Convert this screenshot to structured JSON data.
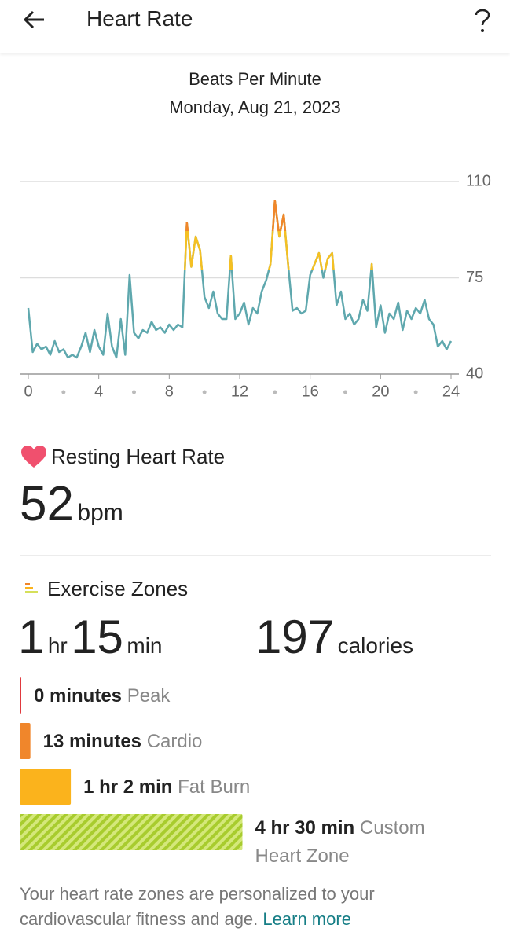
{
  "header": {
    "title": "Heart Rate"
  },
  "chart_data": {
    "type": "line",
    "title": "Beats Per Minute",
    "subtitle": "Monday, Aug 21, 2023",
    "x": [
      0,
      0.25,
      0.5,
      0.75,
      1,
      1.25,
      1.5,
      1.75,
      2,
      2.25,
      2.5,
      2.75,
      3,
      3.25,
      3.5,
      3.75,
      4,
      4.25,
      4.5,
      4.75,
      5,
      5.25,
      5.5,
      5.75,
      6,
      6.25,
      6.5,
      6.75,
      7,
      7.25,
      7.5,
      7.75,
      8,
      8.25,
      8.5,
      8.75,
      9,
      9.25,
      9.5,
      9.75,
      10,
      10.25,
      10.5,
      10.75,
      11,
      11.25,
      11.5,
      11.75,
      12,
      12.25,
      12.5,
      12.75,
      13,
      13.25,
      13.5,
      13.75,
      14,
      14.25,
      14.5,
      14.75,
      15,
      15.25,
      15.5,
      15.75,
      16,
      16.25,
      16.5,
      16.75,
      17,
      17.25,
      17.5,
      17.75,
      18,
      18.25,
      18.5,
      18.75,
      19,
      19.25,
      19.5,
      19.75,
      20,
      20.25,
      20.5,
      20.75,
      21,
      21.25,
      21.5,
      21.75,
      22,
      22.25,
      22.5,
      22.75,
      23,
      23.25,
      23.5,
      23.75,
      24
    ],
    "values": [
      64,
      48,
      51,
      49,
      50,
      47,
      52,
      48,
      49,
      46,
      47,
      46,
      50,
      55,
      48,
      56,
      50,
      47,
      62,
      50,
      46,
      60,
      47,
      76,
      55,
      53,
      56,
      55,
      59,
      56,
      57,
      55,
      58,
      56,
      58,
      57,
      95,
      79,
      90,
      85,
      68,
      64,
      70,
      62,
      60,
      60,
      83,
      60,
      62,
      66,
      58,
      64,
      62,
      70,
      74,
      80,
      103,
      90,
      98,
      80,
      63,
      64,
      62,
      63,
      76,
      80,
      84,
      75,
      82,
      84,
      65,
      70,
      60,
      62,
      58,
      60,
      67,
      63,
      80,
      57,
      65,
      55,
      62,
      60,
      66,
      56,
      63,
      60,
      64,
      62,
      67,
      60,
      58,
      50,
      52,
      49,
      52
    ],
    "color": "#5fa8ae",
    "color_bands": [
      {
        "from": 78,
        "color": "#f5c023"
      },
      {
        "from": 92,
        "color": "#f0862b"
      }
    ],
    "xlim": [
      0,
      24
    ],
    "ylim": [
      40,
      110
    ],
    "xticks": [
      0,
      4,
      8,
      12,
      16,
      20,
      24
    ],
    "xminorticks": [
      2,
      6,
      10,
      14,
      18,
      22
    ],
    "yticks": [
      40,
      75,
      110
    ],
    "grid": true
  },
  "resting": {
    "title": "Resting Heart Rate",
    "value": 52,
    "unit": "bpm"
  },
  "exercise": {
    "title": "Exercise Zones",
    "hours": 1,
    "hours_unit": "hr",
    "minutes": 15,
    "minutes_unit": "min",
    "calories": 197,
    "calories_unit": "calories",
    "zones": [
      {
        "minutes": 0,
        "label": "0 minutes",
        "name": "Peak",
        "color": "#e0393e"
      },
      {
        "minutes": 13,
        "label": "13 minutes",
        "name": "Cardio",
        "color": "#f0862b"
      },
      {
        "minutes": 62,
        "label": "1 hr 2 min",
        "name": "Fat Burn",
        "color": "#fbb31c"
      },
      {
        "minutes": 270,
        "label": "4 hr 30 min",
        "name": "Custom Heart Zone",
        "color": "#a8cc2e",
        "hatched": true
      }
    ]
  },
  "footer": {
    "text": "Your heart rate zones are personalized to your cardiovascular fitness and age.",
    "link": "Learn more"
  }
}
